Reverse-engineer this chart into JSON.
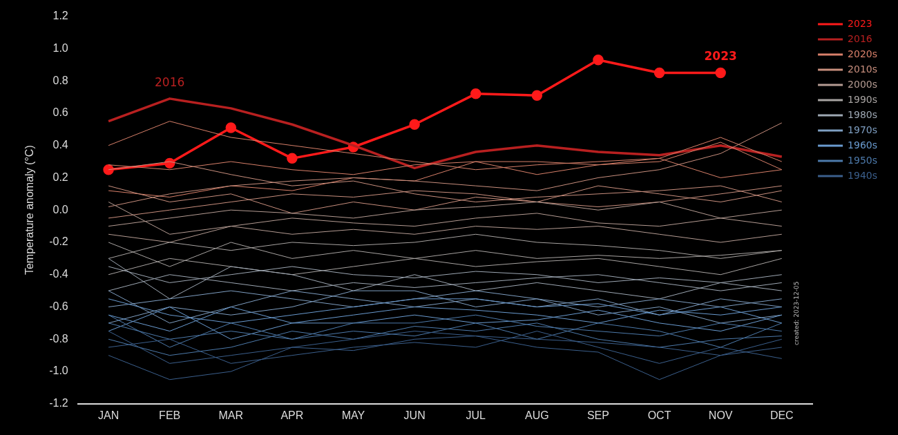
{
  "chart_data": {
    "type": "line",
    "ylabel": "Temperature anomaly (°C)",
    "categories": [
      "JAN",
      "FEB",
      "MAR",
      "APR",
      "MAY",
      "JUN",
      "JUL",
      "AUG",
      "SEP",
      "OCT",
      "NOV",
      "DEC"
    ],
    "ylim": [
      -1.2,
      1.2
    ],
    "yticks": [
      {
        "value": -1.2,
        "label": "-1.2"
      },
      {
        "value": -1,
        "label": "-1.0"
      },
      {
        "value": -0.8,
        "label": "-0.8"
      },
      {
        "value": -0.6,
        "label": "-0.6"
      },
      {
        "value": -0.4,
        "label": "-0.4"
      },
      {
        "value": -0.2,
        "label": "-0.2"
      },
      {
        "value": 0,
        "label": "0.0"
      },
      {
        "value": 0.2,
        "label": "0.2"
      },
      {
        "value": 0.4,
        "label": "0.4"
      },
      {
        "value": 0.6,
        "label": "0.6"
      },
      {
        "value": 0.8,
        "label": "0.8"
      },
      {
        "value": 1,
        "label": "1.0"
      },
      {
        "value": 1.2,
        "label": "1.2"
      }
    ],
    "grid": false,
    "legend": "top right",
    "marker": "none",
    "annotations": [
      "2023",
      "2016",
      "created: 2023-12-05"
    ],
    "series": [
      {
        "name": "2023",
        "color": "#ff1a1a",
        "marker": "circle",
        "values": [
          0.25,
          0.29,
          0.51,
          0.32,
          0.39,
          0.53,
          0.72,
          0.71,
          0.93,
          0.85,
          0.85,
          null
        ]
      },
      {
        "name": "2016",
        "color": "#b82020",
        "marker": "none",
        "values": [
          0.55,
          0.69,
          0.63,
          0.53,
          0.4,
          0.26,
          0.36,
          0.4,
          0.36,
          0.34,
          0.4,
          0.33
        ]
      },
      {
        "name": "2020s",
        "color": "#d9806a",
        "values": [
          0.4,
          0.55,
          0.45,
          0.4,
          0.35,
          0.3,
          0.25,
          0.28,
          0.3,
          0.32,
          0.45,
          0.3
        ]
      },
      {
        "color": "#d9806a",
        "values": [
          0.12,
          0.08,
          0.15,
          0.12,
          0.2,
          0.18,
          0.3,
          0.22,
          0.28,
          0.3,
          0.42,
          0.25
        ]
      },
      {
        "color": "#d9806a",
        "values": [
          0.28,
          0.25,
          0.3,
          0.25,
          0.22,
          0.28,
          0.3,
          0.3,
          0.28,
          0.32,
          0.2,
          0.25
        ]
      },
      {
        "name": "2010s",
        "color": "#c98f7e",
        "values": [
          0.02,
          0.1,
          0.15,
          0.18,
          0.2,
          0.18,
          0.15,
          0.12,
          0.2,
          0.25,
          0.35,
          0.54
        ]
      },
      {
        "color": "#c98f7e",
        "values": [
          0.25,
          0.3,
          0.22,
          0.15,
          0.18,
          0.1,
          0.05,
          0.08,
          0.1,
          0.12,
          0.15,
          0.05
        ]
      },
      {
        "color": "#c98f7e",
        "values": [
          -0.05,
          0.0,
          0.05,
          0.1,
          0.08,
          0.12,
          0.1,
          0.05,
          0.15,
          0.1,
          0.05,
          0.12
        ]
      },
      {
        "color": "#c98f7e",
        "values": [
          0.15,
          0.05,
          0.1,
          -0.02,
          0.05,
          0.0,
          0.08,
          0.05,
          0.02,
          0.05,
          0.1,
          0.15
        ]
      },
      {
        "name": "2000s",
        "color": "#b59c93",
        "values": [
          -0.1,
          -0.05,
          0.0,
          -0.02,
          -0.05,
          0.0,
          0.02,
          0.05,
          0.0,
          0.05,
          -0.05,
          0.0
        ]
      },
      {
        "color": "#b59c93",
        "values": [
          0.05,
          -0.15,
          -0.1,
          -0.05,
          -0.08,
          -0.1,
          -0.05,
          -0.02,
          -0.08,
          -0.1,
          -0.05,
          -0.1
        ]
      },
      {
        "color": "#b59c93",
        "values": [
          -0.15,
          -0.2,
          -0.1,
          -0.15,
          -0.12,
          -0.15,
          -0.1,
          -0.12,
          -0.1,
          -0.15,
          -0.2,
          -0.15
        ]
      },
      {
        "name": "1990s",
        "color": "#a8a4a2",
        "values": [
          -0.3,
          -0.2,
          -0.25,
          -0.2,
          -0.22,
          -0.2,
          -0.15,
          -0.2,
          -0.22,
          -0.25,
          -0.3,
          -0.25
        ]
      },
      {
        "color": "#a8a4a2",
        "values": [
          -0.2,
          -0.35,
          -0.2,
          -0.3,
          -0.25,
          -0.3,
          -0.25,
          -0.3,
          -0.28,
          -0.3,
          -0.28,
          -0.25
        ]
      },
      {
        "color": "#a8a4a2",
        "values": [
          -0.4,
          -0.3,
          -0.35,
          -0.4,
          -0.35,
          -0.3,
          -0.35,
          -0.32,
          -0.3,
          -0.35,
          -0.4,
          -0.3
        ]
      },
      {
        "name": "1980s",
        "color": "#9ea8b4",
        "values": [
          -0.35,
          -0.45,
          -0.4,
          -0.35,
          -0.4,
          -0.42,
          -0.38,
          -0.4,
          -0.45,
          -0.42,
          -0.45,
          -0.4
        ]
      },
      {
        "color": "#9ea8b4",
        "values": [
          -0.5,
          -0.4,
          -0.45,
          -0.5,
          -0.45,
          -0.48,
          -0.45,
          -0.42,
          -0.4,
          -0.45,
          -0.5,
          -0.45
        ]
      },
      {
        "color": "#9ea8b4",
        "values": [
          -0.3,
          -0.55,
          -0.35,
          -0.4,
          -0.5,
          -0.4,
          -0.5,
          -0.45,
          -0.5,
          -0.55,
          -0.45,
          -0.5
        ]
      },
      {
        "name": "1970s",
        "color": "#7f9fc2",
        "values": [
          -0.6,
          -0.55,
          -0.5,
          -0.55,
          -0.6,
          -0.55,
          -0.5,
          -0.55,
          -0.6,
          -0.55,
          -0.6,
          -0.55
        ]
      },
      {
        "color": "#7f9fc2",
        "values": [
          -0.5,
          -0.7,
          -0.6,
          -0.5,
          -0.55,
          -0.6,
          -0.55,
          -0.6,
          -0.55,
          -0.65,
          -0.55,
          -0.6
        ]
      },
      {
        "color": "#7f9fc2",
        "values": [
          -0.7,
          -0.6,
          -0.65,
          -0.6,
          -0.5,
          -0.5,
          -0.6,
          -0.55,
          -0.65,
          -0.6,
          -0.7,
          -0.65
        ]
      },
      {
        "name": "1960s",
        "color": "#6a9bd0",
        "values": [
          -0.55,
          -0.65,
          -0.7,
          -0.65,
          -0.6,
          -0.55,
          -0.55,
          -0.6,
          -0.58,
          -0.65,
          -0.6,
          -0.7
        ]
      },
      {
        "color": "#6a9bd0",
        "values": [
          -0.65,
          -0.75,
          -0.6,
          -0.7,
          -0.65,
          -0.6,
          -0.62,
          -0.65,
          -0.7,
          -0.62,
          -0.65,
          -0.6
        ]
      },
      {
        "color": "#6a9bd0",
        "values": [
          -0.75,
          -0.6,
          -0.8,
          -0.7,
          -0.7,
          -0.65,
          -0.7,
          -0.68,
          -0.62,
          -0.7,
          -0.75,
          -0.65
        ]
      },
      {
        "name": "1950s",
        "color": "#4d7aab",
        "values": [
          -0.7,
          -0.8,
          -0.75,
          -0.8,
          -0.7,
          -0.7,
          -0.65,
          -0.72,
          -0.75,
          -0.78,
          -0.7,
          -0.75
        ]
      },
      {
        "color": "#4d7aab",
        "values": [
          -0.8,
          -0.9,
          -0.85,
          -0.75,
          -0.8,
          -0.72,
          -0.75,
          -0.7,
          -0.8,
          -0.85,
          -0.8,
          -0.78
        ]
      },
      {
        "color": "#4d7aab",
        "values": [
          -0.65,
          -0.85,
          -0.7,
          -0.8,
          -0.75,
          -0.78,
          -0.7,
          -0.8,
          -0.7,
          -0.75,
          -0.85,
          -0.7
        ]
      },
      {
        "name": "1940s",
        "color": "#3b5f8c",
        "values": [
          -0.75,
          -0.95,
          -0.9,
          -0.85,
          -0.8,
          -0.75,
          -0.78,
          -0.8,
          -0.82,
          -0.85,
          -0.9,
          -0.85
        ]
      },
      {
        "color": "#3b5f8c",
        "values": [
          -0.9,
          -1.05,
          -1.0,
          -0.85,
          -0.87,
          -0.8,
          -0.78,
          -0.85,
          -0.88,
          -1.05,
          -0.9,
          -0.8
        ]
      },
      {
        "color": "#3b5f8c",
        "values": [
          -0.85,
          -0.8,
          -0.95,
          -0.9,
          -0.85,
          -0.82,
          -0.85,
          -0.75,
          -0.85,
          -0.95,
          -0.85,
          -0.92
        ]
      }
    ]
  }
}
